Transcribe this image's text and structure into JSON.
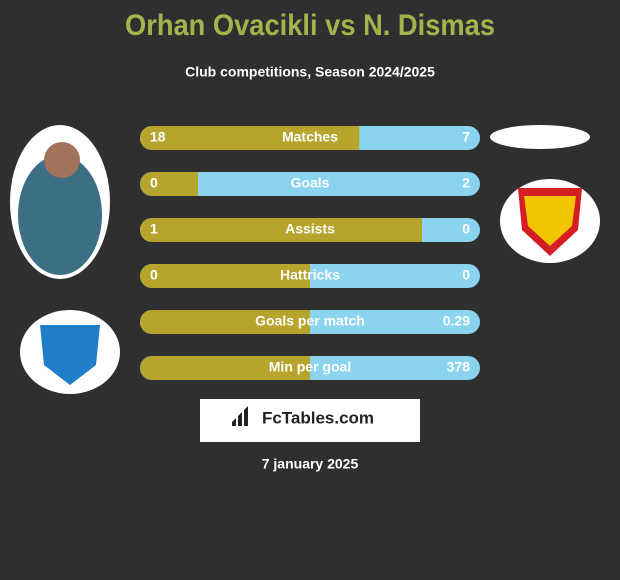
{
  "header": {
    "title": "Orhan Ovacikli vs N. Dismas",
    "subtitle": "Club competitions, Season 2024/2025"
  },
  "rows": [
    {
      "label": "Matches",
      "left": 18,
      "right": 7
    },
    {
      "label": "Goals",
      "left": 0,
      "right": 2
    },
    {
      "label": "Assists",
      "left": 1,
      "right": 0
    },
    {
      "label": "Hattricks",
      "left": 0,
      "right": 0
    },
    {
      "label": "Goals per match",
      "right": 0.29
    },
    {
      "label": "Min per goal",
      "right": 378
    }
  ],
  "brand": "FcTables.com",
  "date": "7 january 2025"
}
